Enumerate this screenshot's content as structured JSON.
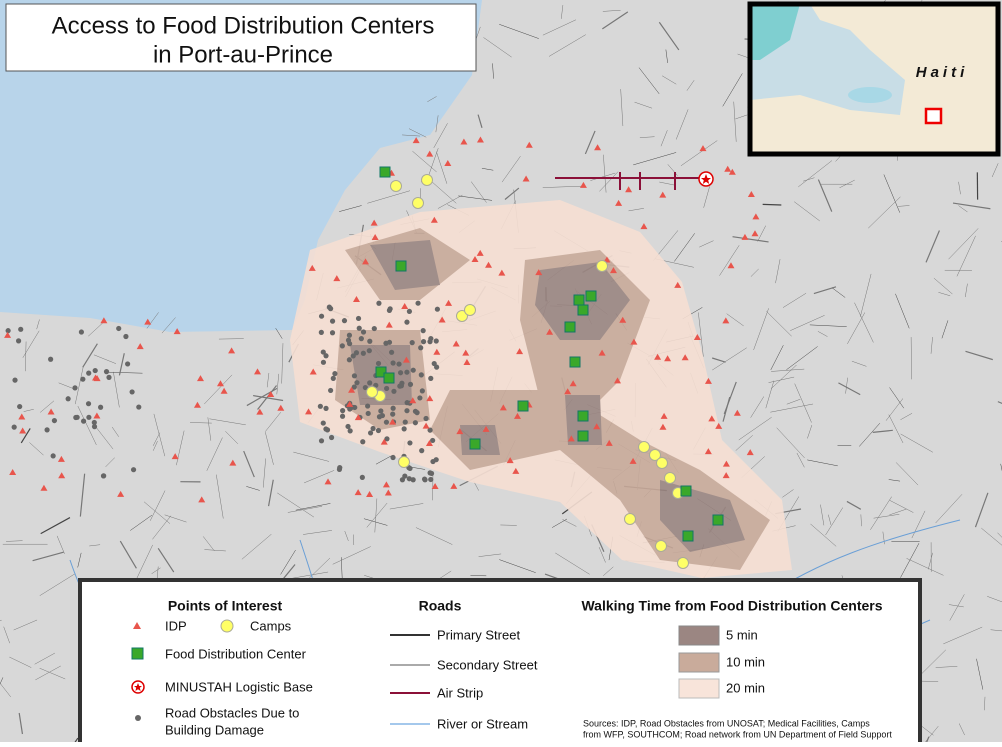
{
  "title": {
    "lines": [
      "Access to Food Distribution Centers",
      "in Port-au-Prince"
    ]
  },
  "inset": {
    "label": "Haiti"
  },
  "legend": {
    "points_of_interest": {
      "heading": "Points of Interest",
      "idp": "IDP",
      "camps": "Camps",
      "food_center": "Food Distribution Center",
      "base": "MINUSTAH Logistic Base",
      "obstacles": [
        "Road Obstacles Due to",
        "Building Damage"
      ]
    },
    "roads": {
      "heading": "Roads",
      "items": [
        "Primary Street",
        "Secondary Street",
        "Air Strip",
        "River or Stream"
      ]
    },
    "walking_time": {
      "heading": "Walking Time from Food Distribution Centers",
      "items": [
        "5 min",
        "10 min",
        "20 min"
      ]
    },
    "sources": [
      "Sources:  IDP, Road Obstacles from UNOSAT; Medical Facilities, Camps",
      "from WFP, SOUTHCOM; Road network from UN Department of Field Support"
    ]
  }
}
